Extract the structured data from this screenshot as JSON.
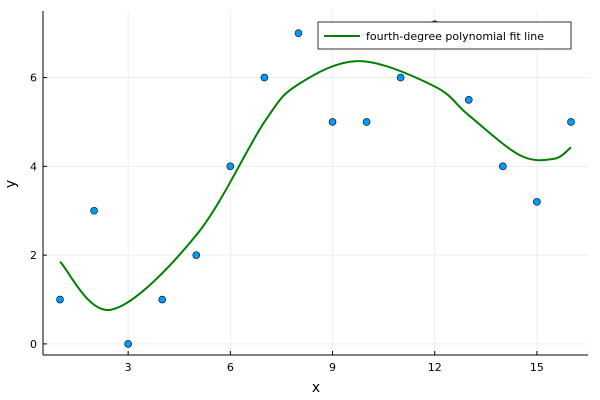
{
  "chart_data": {
    "type": "scatter",
    "xlabel": "x",
    "ylabel": "y",
    "xlim": [
      0.5,
      16.5
    ],
    "ylim": [
      -0.25,
      7.5
    ],
    "xticks": [
      3,
      6,
      9,
      12,
      15
    ],
    "yticks": [
      0,
      2,
      4,
      6
    ],
    "grid": true,
    "legend": {
      "placement": "top-right",
      "entries": [
        "fourth-degree polynomial fit line"
      ]
    },
    "series": [
      {
        "kind": "points",
        "color": "#009AFA",
        "x": [
          1,
          2,
          3,
          4,
          5,
          6,
          7,
          8,
          9,
          10,
          11,
          12,
          13,
          14,
          15,
          16
        ],
        "y": [
          1,
          3,
          0,
          1,
          2,
          4,
          6,
          7,
          5,
          5,
          6,
          7.2,
          5.5,
          4,
          3.2,
          5
        ]
      },
      {
        "kind": "line",
        "name": "fourth-degree polynomial fit line",
        "color": "#008000",
        "x": [
          1,
          2.5,
          5,
          7,
          8,
          9.8,
          12,
          13,
          14.5,
          15.5,
          16
        ],
        "y": [
          1.85,
          0.77,
          2.45,
          5.0,
          5.85,
          6.37,
          5.8,
          5.15,
          4.25,
          4.17,
          4.43
        ]
      }
    ]
  }
}
